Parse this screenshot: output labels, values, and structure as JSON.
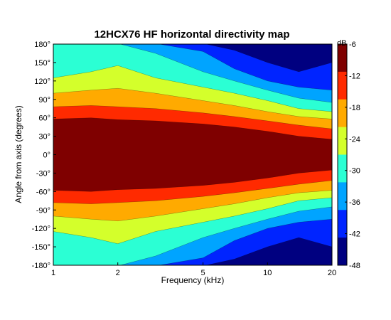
{
  "chart_data": {
    "type": "heatmap",
    "title": "12HCX76 HF horizontal directivity map",
    "xlabel": "Frequency (kHz)",
    "ylabel": "Angle from axis (degrees)",
    "x_scale": "log",
    "xlim": [
      1,
      20
    ],
    "ylim": [
      -180,
      180
    ],
    "x_ticks": [
      "1",
      "2",
      "5",
      "10",
      "20"
    ],
    "x_tick_values": [
      1,
      2,
      5,
      10,
      20
    ],
    "y_ticks": [
      "180°",
      "150°",
      "120°",
      "90°",
      "60°",
      "30°",
      "0°",
      "-30°",
      "-60°",
      "-90°",
      "-120°",
      "-150°",
      "-180°"
    ],
    "y_tick_values": [
      180,
      150,
      120,
      90,
      60,
      30,
      0,
      -30,
      -60,
      -90,
      -120,
      -150,
      -180
    ],
    "colorbar": {
      "label": "dB",
      "range": [
        -48,
        -6
      ],
      "ticks": [
        "-6",
        "-12",
        "-18",
        "-24",
        "-30",
        "-36",
        "-42",
        "-48"
      ],
      "tick_values": [
        -6,
        -12,
        -18,
        -24,
        -30,
        -36,
        -42,
        -48
      ]
    },
    "contour_boundaries_deg": {
      "frequency_khz": [
        1,
        1.5,
        2,
        3,
        5,
        7,
        10,
        14,
        20
      ],
      "level_-6dB": [
        58,
        60,
        57,
        55,
        50,
        45,
        38,
        30,
        25
      ],
      "level_-12dB": [
        78,
        80,
        78,
        75,
        68,
        62,
        55,
        48,
        42
      ],
      "level_-18dB": [
        100,
        105,
        108,
        100,
        88,
        80,
        70,
        62,
        58
      ],
      "level_-24dB": [
        125,
        135,
        145,
        125,
        110,
        100,
        88,
        75,
        70
      ],
      "level_-30dB": [
        181,
        181,
        181,
        165,
        135,
        120,
        105,
        92,
        85
      ],
      "level_-36dB": [
        181,
        181,
        181,
        181,
        168,
        140,
        120,
        110,
        105
      ],
      "level_-42dB": [
        181,
        181,
        181,
        181,
        181,
        170,
        150,
        135,
        150
      ]
    },
    "grid": false,
    "colormap": "jet",
    "colors": [
      "#7f0000",
      "#ff2a00",
      "#ffaa00",
      "#d4ff2b",
      "#2bffd4",
      "#00a4ff",
      "#0024ff",
      "#000080"
    ]
  }
}
